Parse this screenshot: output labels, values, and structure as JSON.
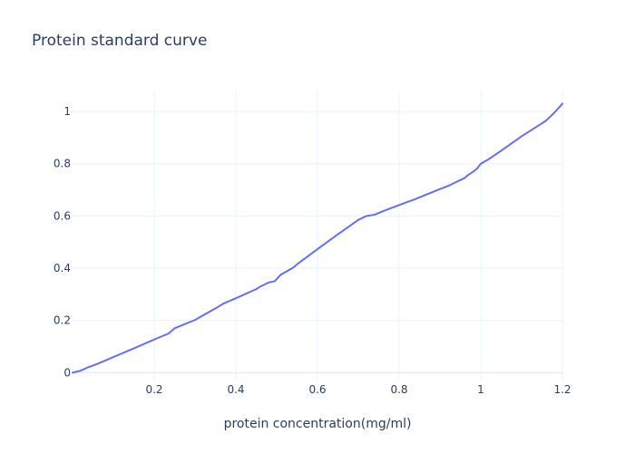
{
  "chart_data": {
    "type": "line",
    "title": "Protein standard curve",
    "xlabel": "protein concentration(mg/ml)",
    "ylabel": "",
    "xlim": [
      0,
      1.2
    ],
    "ylim": [
      -0.03,
      1.08
    ],
    "xticks": [
      0.2,
      0.4,
      0.6,
      0.8,
      1,
      1.2
    ],
    "xtick_labels": [
      "0.2",
      "0.4",
      "0.6",
      "0.8",
      "1",
      "1.2"
    ],
    "yticks": [
      0,
      0.2,
      0.4,
      0.6,
      0.8,
      1
    ],
    "ytick_labels": [
      "0",
      "0.2",
      "0.4",
      "0.6",
      "0.8",
      "1"
    ],
    "grid": true,
    "colors": {
      "line": "#636efa",
      "grid": "#ebf0f8",
      "text": "#2a3f5f"
    },
    "series": [
      {
        "x": [
          0,
          0.02,
          0.04,
          0.06,
          0.1,
          0.15,
          0.2,
          0.235,
          0.25,
          0.3,
          0.35,
          0.37,
          0.4,
          0.45,
          0.46,
          0.48,
          0.495,
          0.51,
          0.54,
          0.55,
          0.6,
          0.65,
          0.7,
          0.72,
          0.74,
          0.76,
          0.8,
          0.84,
          0.86,
          0.9,
          0.92,
          0.96,
          0.97,
          0.98,
          0.99,
          1.0,
          1.02,
          1.05,
          1.1,
          1.15,
          1.16,
          1.17,
          1.18,
          1.2
        ],
        "y": [
          0,
          0.008,
          0.022,
          0.033,
          0.06,
          0.093,
          0.127,
          0.15,
          0.17,
          0.202,
          0.246,
          0.265,
          0.285,
          0.32,
          0.33,
          0.345,
          0.35,
          0.375,
          0.402,
          0.415,
          0.473,
          0.53,
          0.585,
          0.6,
          0.605,
          0.618,
          0.642,
          0.665,
          0.678,
          0.703,
          0.715,
          0.745,
          0.758,
          0.768,
          0.78,
          0.8,
          0.818,
          0.85,
          0.905,
          0.955,
          0.965,
          0.98,
          0.995,
          1.03
        ]
      }
    ]
  }
}
